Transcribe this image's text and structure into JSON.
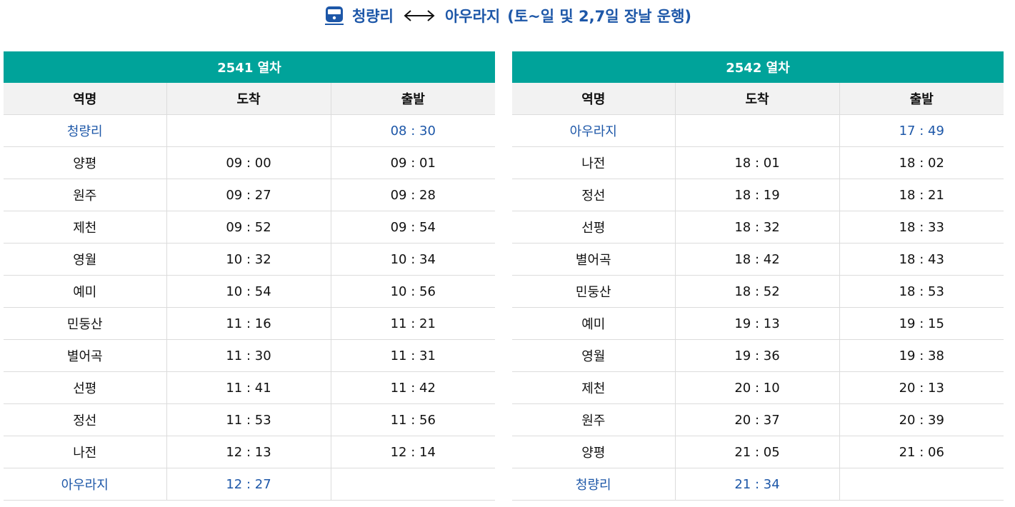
{
  "header": {
    "origin": "청량리",
    "destination": "아우라지",
    "note": "(토~일 및 2,7일 장날 운행)",
    "icon": "train-icon",
    "arrow_icon": "bidirectional-arrow-icon",
    "accent_color": "#1d57a8"
  },
  "colors": {
    "title_bar": "#00a39a",
    "terminal_text": "#1d57a8",
    "column_header_bg": "#f2f2f2"
  },
  "columns": [
    "역명",
    "도착",
    "출발"
  ],
  "trains": [
    {
      "title": "2541 열차",
      "rows": [
        {
          "station": "청량리",
          "arrive": "",
          "depart": "08 : 30",
          "terminal": true
        },
        {
          "station": "양평",
          "arrive": "09 : 00",
          "depart": "09 : 01",
          "terminal": false
        },
        {
          "station": "원주",
          "arrive": "09 : 27",
          "depart": "09 : 28",
          "terminal": false
        },
        {
          "station": "제천",
          "arrive": "09 : 52",
          "depart": "09 : 54",
          "terminal": false
        },
        {
          "station": "영월",
          "arrive": "10 : 32",
          "depart": "10 : 34",
          "terminal": false
        },
        {
          "station": "예미",
          "arrive": "10 : 54",
          "depart": "10 : 56",
          "terminal": false
        },
        {
          "station": "민둥산",
          "arrive": "11 : 16",
          "depart": "11 : 21",
          "terminal": false
        },
        {
          "station": "별어곡",
          "arrive": "11 : 30",
          "depart": "11 : 31",
          "terminal": false
        },
        {
          "station": "선평",
          "arrive": "11 : 41",
          "depart": "11 : 42",
          "terminal": false
        },
        {
          "station": "정선",
          "arrive": "11 : 53",
          "depart": "11 : 56",
          "terminal": false
        },
        {
          "station": "나전",
          "arrive": "12 : 13",
          "depart": "12 : 14",
          "terminal": false
        },
        {
          "station": "아우라지",
          "arrive": "12 : 27",
          "depart": "",
          "terminal": true
        }
      ]
    },
    {
      "title": "2542 열차",
      "rows": [
        {
          "station": "아우라지",
          "arrive": "",
          "depart": "17 : 49",
          "terminal": true
        },
        {
          "station": "나전",
          "arrive": "18 : 01",
          "depart": "18 : 02",
          "terminal": false
        },
        {
          "station": "정선",
          "arrive": "18 : 19",
          "depart": "18 : 21",
          "terminal": false
        },
        {
          "station": "선평",
          "arrive": "18 : 32",
          "depart": "18 : 33",
          "terminal": false
        },
        {
          "station": "별어곡",
          "arrive": "18 : 42",
          "depart": "18 : 43",
          "terminal": false
        },
        {
          "station": "민둥산",
          "arrive": "18 : 52",
          "depart": "18 : 53",
          "terminal": false
        },
        {
          "station": "예미",
          "arrive": "19 : 13",
          "depart": "19 : 15",
          "terminal": false
        },
        {
          "station": "영월",
          "arrive": "19 : 36",
          "depart": "19 : 38",
          "terminal": false
        },
        {
          "station": "제천",
          "arrive": "20 : 10",
          "depart": "20 : 13",
          "terminal": false
        },
        {
          "station": "원주",
          "arrive": "20 : 37",
          "depart": "20 : 39",
          "terminal": false
        },
        {
          "station": "양평",
          "arrive": "21 : 05",
          "depart": "21 : 06",
          "terminal": false
        },
        {
          "station": "청량리",
          "arrive": "21 : 34",
          "depart": "",
          "terminal": true
        }
      ]
    }
  ]
}
